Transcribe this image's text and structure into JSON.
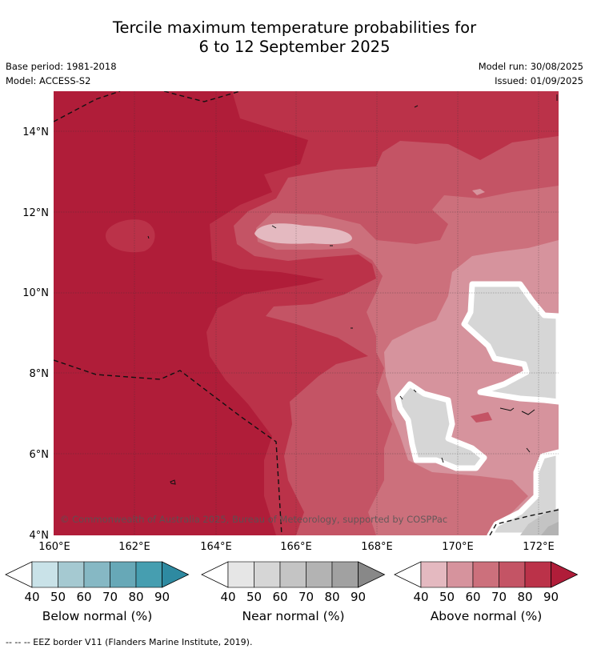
{
  "title": {
    "line1": "Tercile maximum temperature probabilities for",
    "line2": "6 to 12 September 2025"
  },
  "meta": {
    "base_period": "Base period: 1981-2018",
    "model": "Model: ACCESS-S2",
    "model_run": "Model run: 30/08/2025",
    "issued": "Issued: 01/09/2025"
  },
  "map": {
    "lon_range": [
      160,
      172.5
    ],
    "lat_range": [
      4,
      15
    ],
    "x_ticks": [
      "160°E",
      "162°E",
      "164°E",
      "166°E",
      "168°E",
      "170°E",
      "172°E"
    ],
    "y_ticks": [
      "4°N",
      "6°N",
      "8°N",
      "10°N",
      "12°N",
      "14°N"
    ],
    "copyright": "© Commonwealth of Australia 2025, Bureau of Meteorology, supported by COSPPac",
    "grid": true
  },
  "colorbars": [
    {
      "name": "below",
      "label": "Below normal (%)",
      "ticks": [
        "40",
        "50",
        "60",
        "70",
        "80",
        "90"
      ],
      "colors": [
        "#ffffff",
        "#c9e2e8",
        "#a5c9d1",
        "#86b8c4",
        "#67a8b7",
        "#469eb0",
        "#2e8aa1"
      ]
    },
    {
      "name": "near",
      "label": "Near normal (%)",
      "ticks": [
        "40",
        "50",
        "60",
        "70",
        "80",
        "90"
      ],
      "colors": [
        "#ffffff",
        "#e6e6e6",
        "#d6d6d6",
        "#c4c4c4",
        "#b3b3b3",
        "#a1a1a1",
        "#888888"
      ]
    },
    {
      "name": "above",
      "label": "Above normal (%)",
      "ticks": [
        "40",
        "50",
        "60",
        "70",
        "80",
        "90"
      ],
      "colors": [
        "#ffffff",
        "#e4b9c0",
        "#d6939d",
        "#cc707c",
        "#c45465",
        "#bb3249",
        "#b01d39"
      ]
    }
  ],
  "footnote": "--  --  -- EEZ border V11 (Flanders Marine Institute, 2019)."
}
